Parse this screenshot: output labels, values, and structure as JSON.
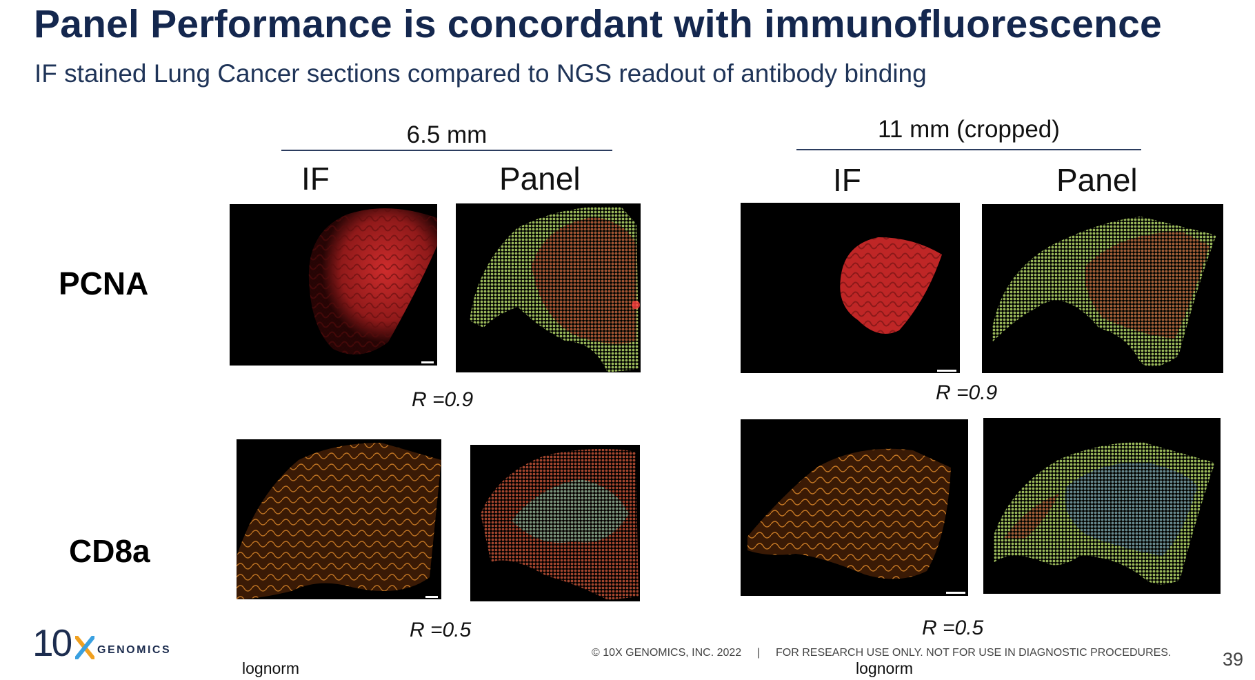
{
  "slide": {
    "title": "Panel Performance is concordant with immunofluorescence",
    "subtitle": "IF stained Lung Cancer sections compared to NGS readout of antibody binding",
    "page_number": "39"
  },
  "groups": [
    {
      "scale": "6.5 mm",
      "if_label": "IF",
      "panel_label": "Panel"
    },
    {
      "scale": "11 mm (cropped)",
      "if_label": "IF",
      "panel_label": "Panel"
    }
  ],
  "rows": [
    {
      "label": "PCNA",
      "r_values": [
        "R =0.9",
        "R =0.9"
      ]
    },
    {
      "label": "CD8a",
      "r_values": [
        "R =0.5",
        "R =0.5"
      ]
    }
  ],
  "footer": {
    "copyright": "© 10X GENOMICS, INC. 2022",
    "separator": "|",
    "disclaimer": "FOR RESEARCH USE ONLY. NOT FOR USE IN DIAGNOSTIC PROCEDURES.",
    "lognorm_left": "lognorm",
    "lognorm_right": "lognorm"
  },
  "logo": {
    "number": "10",
    "x": "X",
    "word": "GENOMICS"
  },
  "colors": {
    "title": "#14274e",
    "if_pcna": "#d42a2a",
    "if_cd8a": "#c9781c",
    "panel_green": "#8fb35a",
    "panel_red": "#a8402c",
    "panel_blue": "#3b5fb8",
    "logo_x_orange": "#f0a020",
    "logo_x_blue": "#3aa0e0"
  }
}
